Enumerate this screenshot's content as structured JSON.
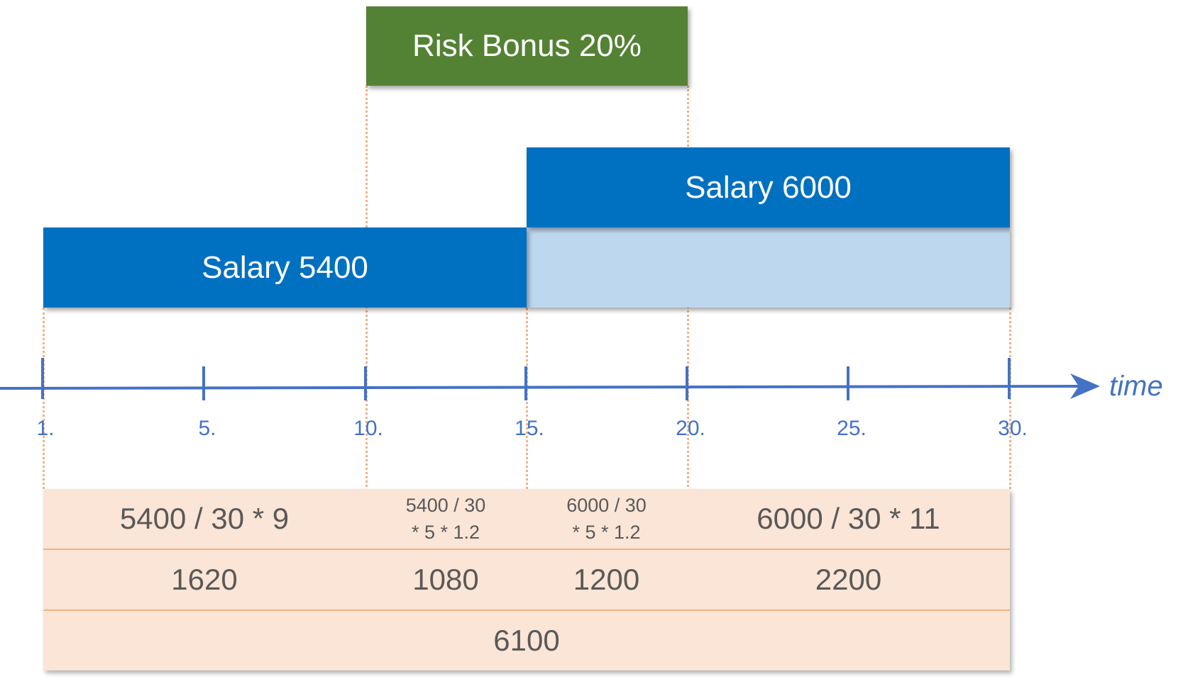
{
  "bars": {
    "risk_bonus": "Risk Bonus 20%",
    "salary_new": "Salary 6000",
    "salary_old": "Salary 5400"
  },
  "axis": {
    "label": "time",
    "ticks": [
      "1.",
      "5.",
      "10.",
      "15.",
      "20.",
      "25.",
      "30."
    ]
  },
  "table": {
    "formulas": [
      "5400 / 30 * 9",
      "5400 / 30\n* 5 * 1.2",
      "6000 / 30\n* 5 * 1.2",
      "6000 / 30 * 11"
    ],
    "amounts": [
      "1620",
      "1080",
      "1200",
      "2200"
    ],
    "total": "6100"
  },
  "colors": {
    "axis": "#4472c4",
    "salary_bar": "#0070c0",
    "salary_bar_light": "#bdd7ee",
    "bonus_bar": "#548235",
    "table_fill": "#fbe5d6",
    "guide_lines": "#f4b183"
  }
}
